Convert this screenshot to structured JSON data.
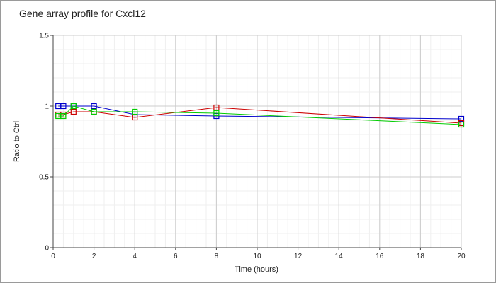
{
  "chart_data": {
    "type": "line",
    "title": "Gene array profile for Cxcl12",
    "xlabel": "Time (hours)",
    "ylabel": "Ratio to Ctrl",
    "xlim": [
      0,
      20
    ],
    "ylim": [
      0,
      1.5
    ],
    "x_ticks": [
      "0",
      "2",
      "4",
      "6",
      "8",
      "10",
      "12",
      "14",
      "16",
      "18",
      "20"
    ],
    "y_ticks": [
      "0",
      "0.5",
      "1",
      "1.5"
    ],
    "grid": true,
    "legend": "none",
    "series": [
      {
        "color": "#0000cc",
        "x": [
          0.25,
          0.5,
          1,
          2,
          4,
          8,
          20
        ],
        "values": [
          1.0,
          1.0,
          1.0,
          1.0,
          0.94,
          0.93,
          0.91
        ]
      },
      {
        "color": "#cc0000",
        "x": [
          0.25,
          0.5,
          1,
          2,
          4,
          8,
          20
        ],
        "values": [
          0.94,
          0.94,
          0.96,
          0.96,
          0.92,
          0.99,
          0.88
        ]
      },
      {
        "color": "#00cc00",
        "x": [
          0.25,
          0.5,
          1,
          2,
          4,
          8,
          20
        ],
        "values": [
          0.93,
          0.93,
          1.0,
          0.96,
          0.96,
          0.95,
          0.87
        ]
      }
    ]
  }
}
